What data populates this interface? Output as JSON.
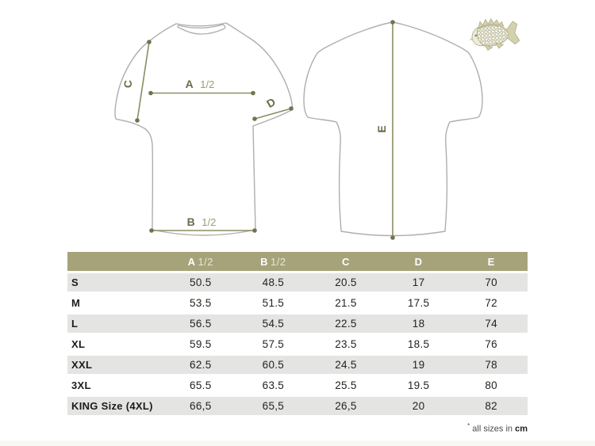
{
  "diagram": {
    "front_view": {
      "a": {
        "letter": "A",
        "fraction": "1/2"
      },
      "b": {
        "letter": "B",
        "fraction": "1/2"
      },
      "c": {
        "letter": "C"
      },
      "d": {
        "letter": "D"
      }
    },
    "back_view": {
      "e": {
        "letter": "E"
      }
    },
    "logo": "carp-fish-logo"
  },
  "table": {
    "columns": [
      {
        "letter": "A",
        "fraction": "1/2"
      },
      {
        "letter": "B",
        "fraction": "1/2"
      },
      {
        "letter": "C"
      },
      {
        "letter": "D"
      },
      {
        "letter": "E"
      }
    ],
    "rows": [
      {
        "size": "S",
        "values": [
          "50.5",
          "48.5",
          "20.5",
          "17",
          "70"
        ]
      },
      {
        "size": "M",
        "values": [
          "53.5",
          "51.5",
          "21.5",
          "17.5",
          "72"
        ]
      },
      {
        "size": "L",
        "values": [
          "56.5",
          "54.5",
          "22.5",
          "18",
          "74"
        ]
      },
      {
        "size": "XL",
        "values": [
          "59.5",
          "57.5",
          "23.5",
          "18.5",
          "76"
        ]
      },
      {
        "size": "XXL",
        "values": [
          "62.5",
          "60.5",
          "24.5",
          "19",
          "78"
        ]
      },
      {
        "size": "3XL",
        "values": [
          "65.5",
          "63.5",
          "25.5",
          "19.5",
          "80"
        ]
      },
      {
        "size": "KING Size (4XL)",
        "values": [
          "66,5",
          "65,5",
          "26,5",
          "20",
          "82"
        ]
      }
    ]
  },
  "footnote": {
    "star": "*",
    "text": " all sizes in ",
    "unit": "cm"
  },
  "colors": {
    "header_olive": "#a6a37b",
    "row_stripe": "#e4e4e3",
    "measure_line_olive": "#8c8c63",
    "measure_label_olive": "#6b6b47",
    "shirt_outline_gray": "#aeaeae",
    "fish_khaki": "#b0ad85"
  }
}
